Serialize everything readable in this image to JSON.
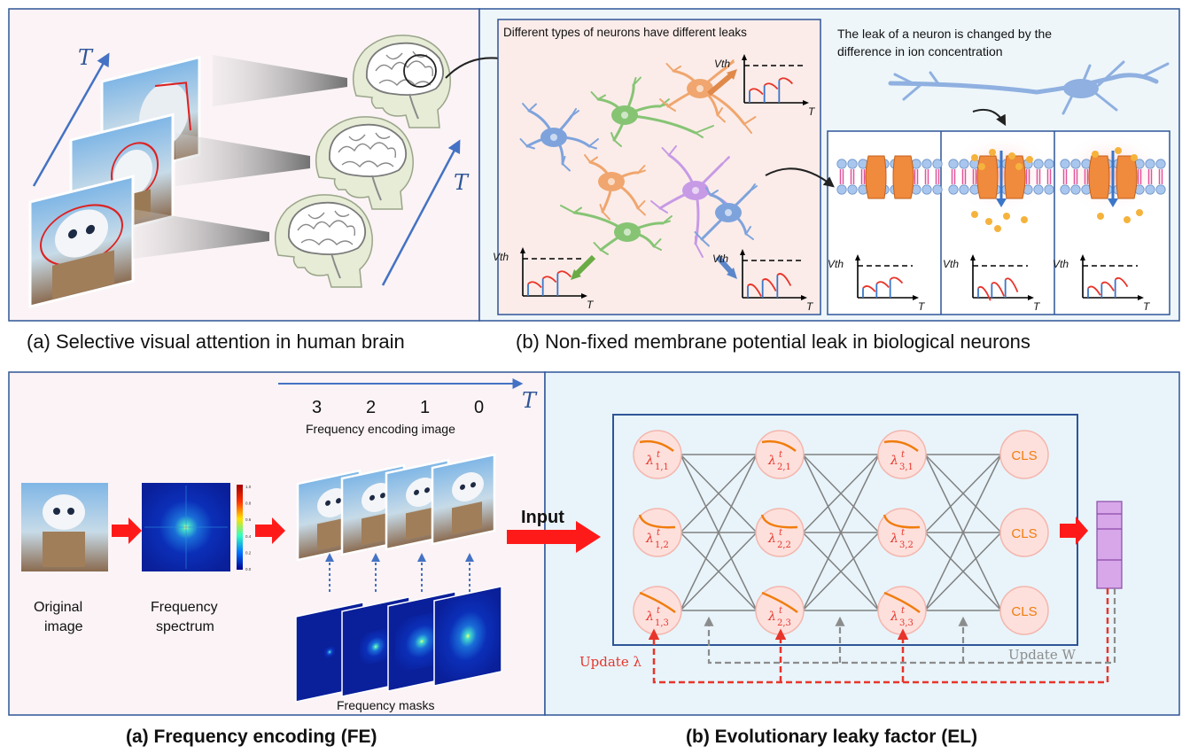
{
  "top": {
    "panel_a": {
      "caption": "(a) Selective visual attention in human brain",
      "time_label": "T"
    },
    "panel_b": {
      "caption": "(b) Non-fixed membrane potential leak in biological neurons",
      "note_left": "Different types of neurons have different leaks",
      "note_right_line1": "The leak of a neuron is changed by the",
      "note_right_line2": "difference in ion concentration",
      "vth_label": "Vth",
      "t_label": "T"
    }
  },
  "bottom": {
    "fe": {
      "caption": "(a) Frequency encoding (FE)",
      "time_label": "T",
      "timesteps": [
        "3",
        "2",
        "1",
        "0"
      ],
      "encoding_label": "Frequency encoding image",
      "original_line1": "Original",
      "original_line2": "image",
      "spectrum_line1": "Frequency",
      "spectrum_line2": "spectrum",
      "masks_label": "Frequency masks",
      "colorbar_ticks": [
        "1.0",
        "0.8",
        "0.6",
        "0.4",
        "0.2",
        "0.0"
      ]
    },
    "el": {
      "caption": "(b) Evolutionary leaky factor (EL)",
      "input_label": "Input",
      "update_lambda": "Update λ",
      "update_w": "Update W",
      "lambda_symbol": "λ",
      "time_sup": "t",
      "layers": [
        {
          "neurons": [
            "1,1",
            "1,2",
            "1,3"
          ]
        },
        {
          "neurons": [
            "2,1",
            "2,2",
            "2,3"
          ]
        },
        {
          "neurons": [
            "3,1",
            "3,2",
            "3,3"
          ]
        }
      ],
      "cls_label": "CLS"
    }
  },
  "colors": {
    "frame": "#2f5597",
    "blue_arrow": "#4472c4",
    "red": "#ff0000",
    "neuron_fill": "#fde0dc",
    "neuron_stroke": "#f4b6ad",
    "trace_orange": "#f07d0e",
    "lambda_red": "#e8342a",
    "output_purple": "#d8a7ea"
  }
}
